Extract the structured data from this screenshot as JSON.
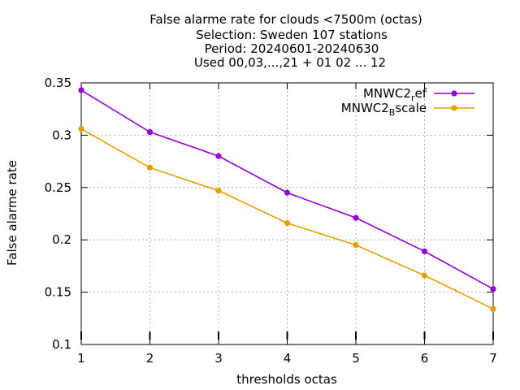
{
  "title_lines": [
    "False alarme rate  for clouds <7500m (octas)",
    "Selection: Sweden    107 stations",
    "Period: 20240601-20240630",
    "Used 00,03,...,21 + 01 02 ... 12"
  ],
  "chart_data": {
    "type": "line",
    "xlabel": "thresholds octas",
    "ylabel": "False alarme rate",
    "xlim": [
      1,
      7
    ],
    "ylim": [
      0.1,
      0.35
    ],
    "x_ticks": [
      "1",
      "2",
      "3",
      "4",
      "5",
      "6",
      "7"
    ],
    "y_ticks": [
      "0.1",
      "0.15",
      "0.2",
      "0.25",
      "0.3",
      "0.35"
    ],
    "grid": true,
    "legend_position": "top-right",
    "x": [
      1,
      2,
      3,
      4,
      5,
      6,
      7
    ],
    "series": [
      {
        "name_main": "MNWC2",
        "name_sub": "r",
        "name_rest": "ef",
        "color": "#9400d3",
        "values": [
          0.343,
          0.303,
          0.28,
          0.245,
          0.221,
          0.189,
          0.153
        ]
      },
      {
        "name_main": "MNWC2",
        "name_sub": "B",
        "name_rest": "scale",
        "color": "#e69f00",
        "values": [
          0.306,
          0.269,
          0.247,
          0.216,
          0.195,
          0.166,
          0.134
        ]
      }
    ]
  }
}
